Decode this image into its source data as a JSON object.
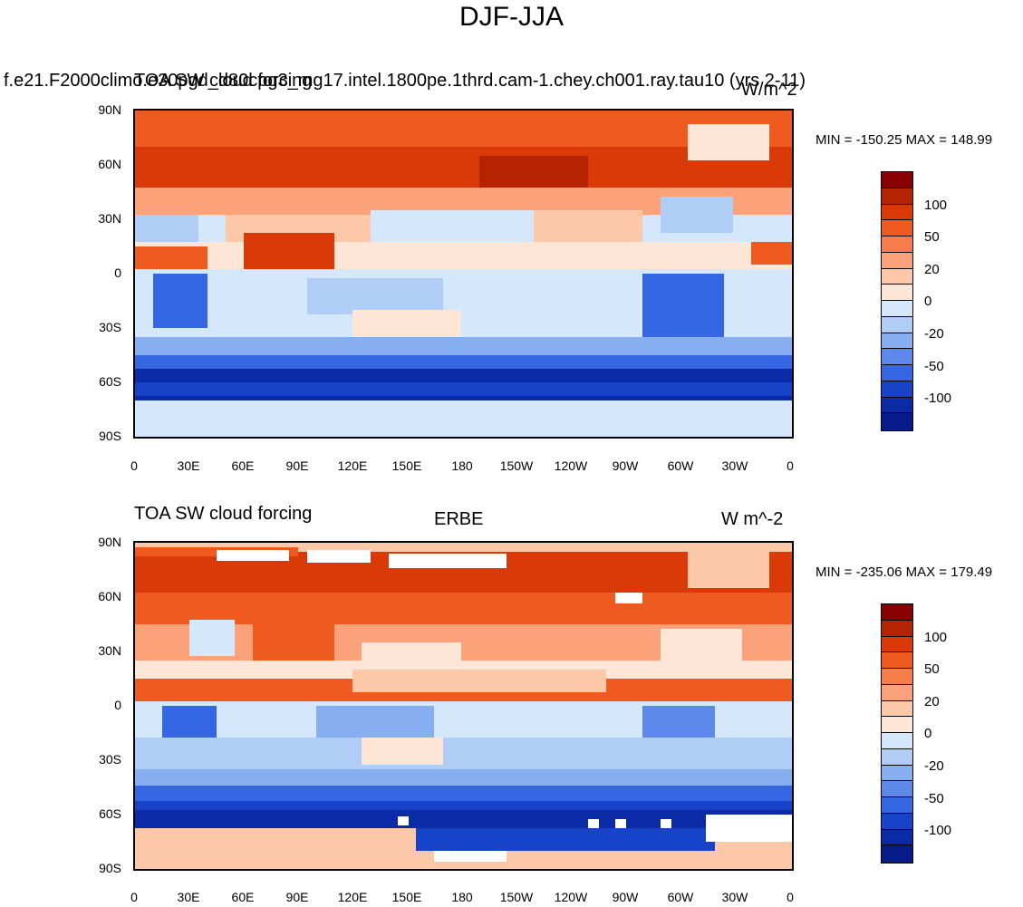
{
  "title": "DJF-JJA",
  "panels": [
    {
      "left_title": "f.e21.F2000climo.e30pgd_d80cpg3_mg17.intel.1800pe.1thrd.cam-1.chey.ch001.ray.tau10 (yrs 2-11)",
      "overlay_title": "TOA SW cloud forcing",
      "center_title": "",
      "right_title": "W/m^2",
      "min_max": "MIN = -150.25 MAX = 148.99"
    },
    {
      "left_title": "TOA SW cloud forcing",
      "overlay_title": "",
      "center_title": "ERBE",
      "right_title": "W m^-2",
      "min_max": "MIN = -235.06 MAX = 179.49"
    }
  ],
  "lat_labels": [
    "90N",
    "60N",
    "30N",
    "0",
    "30S",
    "60S",
    "90S"
  ],
  "lon_labels": [
    "0",
    "30E",
    "60E",
    "90E",
    "120E",
    "150E",
    "180",
    "150W",
    "120W",
    "90W",
    "60W",
    "30W",
    "0"
  ],
  "colorbar": {
    "labels": [
      "100",
      "50",
      "20",
      "0",
      "-20",
      "-50",
      "-100"
    ],
    "colors": [
      "#8b0000",
      "#b52300",
      "#d93a08",
      "#ef5a1f",
      "#f77e4a",
      "#fba27a",
      "#fdc8a8",
      "#fde6d6",
      "#d5e7fb",
      "#b0cdf5",
      "#87aef0",
      "#5d8aea",
      "#3566e4",
      "#1743c9",
      "#0b2aa6",
      "#061a8a"
    ]
  }
}
